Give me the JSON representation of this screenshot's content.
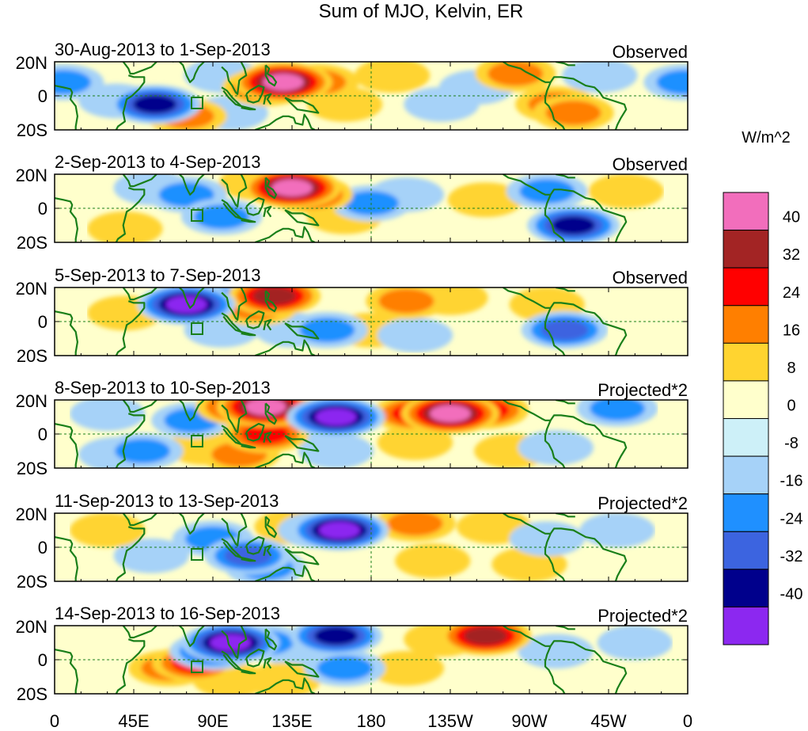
{
  "figure": {
    "title": "Sum of MJO, Kelvin, ER",
    "units": "W/m^2"
  },
  "map_data": {
    "type": "lat-lon contour panels",
    "lat_ticks": [
      "20N",
      "0",
      "20S"
    ],
    "lon_ticks": [
      "0",
      "45E",
      "90E",
      "135E",
      "180",
      "135W",
      "90W",
      "45W",
      "0"
    ],
    "panels": [
      {
        "dates": "30-Aug-2013 to 1-Sep-2013",
        "label": "Observed",
        "blobs": [
          {
            "lon": 130,
            "lat": 8,
            "v": 40
          },
          {
            "lon": 120,
            "lat": 5,
            "v": 24
          },
          {
            "lon": 150,
            "lat": 8,
            "v": 16
          },
          {
            "lon": 57,
            "lat": -5,
            "v": -32
          },
          {
            "lon": 35,
            "lat": -3,
            "v": -8
          },
          {
            "lon": 5,
            "lat": 8,
            "v": -16
          },
          {
            "lon": 358,
            "lat": 8,
            "v": -16
          },
          {
            "lon": 285,
            "lat": -5,
            "v": 16
          },
          {
            "lon": 295,
            "lat": -10,
            "v": 16
          },
          {
            "lon": 262,
            "lat": 13,
            "v": 16
          },
          {
            "lon": 192,
            "lat": 12,
            "v": 8
          },
          {
            "lon": 165,
            "lat": -5,
            "v": 8
          },
          {
            "lon": 220,
            "lat": -5,
            "v": -8
          },
          {
            "lon": 310,
            "lat": 12,
            "v": -8
          },
          {
            "lon": 100,
            "lat": -10,
            "v": -8
          },
          {
            "lon": 240,
            "lat": 5,
            "v": -8
          },
          {
            "lon": 95,
            "lat": 12,
            "v": -8
          },
          {
            "lon": 75,
            "lat": -12,
            "v": 16
          }
        ]
      },
      {
        "dates": "2-Sep-2013 to 4-Sep-2013",
        "label": "Observed",
        "blobs": [
          {
            "lon": 135,
            "lat": 12,
            "v": 40
          },
          {
            "lon": 145,
            "lat": 8,
            "v": 24
          },
          {
            "lon": 75,
            "lat": 8,
            "v": -16
          },
          {
            "lon": 55,
            "lat": 12,
            "v": -8
          },
          {
            "lon": 95,
            "lat": -5,
            "v": -16
          },
          {
            "lon": 180,
            "lat": 3,
            "v": -16
          },
          {
            "lon": 200,
            "lat": 8,
            "v": -8
          },
          {
            "lon": 295,
            "lat": -10,
            "v": -32
          },
          {
            "lon": 280,
            "lat": 10,
            "v": -16
          },
          {
            "lon": 165,
            "lat": -5,
            "v": 8
          },
          {
            "lon": 245,
            "lat": 5,
            "v": 8
          },
          {
            "lon": 115,
            "lat": 15,
            "v": 8
          },
          {
            "lon": 325,
            "lat": 10,
            "v": 8
          },
          {
            "lon": 40,
            "lat": -12,
            "v": 8
          }
        ]
      },
      {
        "dates": "5-Sep-2013 to 7-Sep-2013",
        "label": "Observed",
        "blobs": [
          {
            "lon": 75,
            "lat": 10,
            "v": -40
          },
          {
            "lon": 95,
            "lat": 12,
            "v": -16
          },
          {
            "lon": 125,
            "lat": 15,
            "v": 32
          },
          {
            "lon": 115,
            "lat": 8,
            "v": 16
          },
          {
            "lon": 200,
            "lat": 12,
            "v": 16
          },
          {
            "lon": 225,
            "lat": 14,
            "v": 8
          },
          {
            "lon": 290,
            "lat": -5,
            "v": -24
          },
          {
            "lon": 155,
            "lat": -5,
            "v": -16
          },
          {
            "lon": 135,
            "lat": -5,
            "v": -8
          },
          {
            "lon": 95,
            "lat": -5,
            "v": -8
          },
          {
            "lon": 180,
            "lat": -5,
            "v": 8
          },
          {
            "lon": 280,
            "lat": 10,
            "v": 8
          },
          {
            "lon": 40,
            "lat": 5,
            "v": 8
          },
          {
            "lon": 205,
            "lat": -8,
            "v": -8
          }
        ]
      },
      {
        "dates": "8-Sep-2013 to 10-Sep-2013",
        "label": "Projected*2",
        "blobs": [
          {
            "lon": 120,
            "lat": 16,
            "v": 40
          },
          {
            "lon": 105,
            "lat": 16,
            "v": 24
          },
          {
            "lon": 160,
            "lat": 10,
            "v": -40
          },
          {
            "lon": 145,
            "lat": 8,
            "v": -16
          },
          {
            "lon": 78,
            "lat": 8,
            "v": -16
          },
          {
            "lon": 225,
            "lat": 12,
            "v": 40
          },
          {
            "lon": 205,
            "lat": 12,
            "v": 24
          },
          {
            "lon": 245,
            "lat": 14,
            "v": 24
          },
          {
            "lon": 120,
            "lat": 0,
            "v": 24
          },
          {
            "lon": 105,
            "lat": -12,
            "v": 16
          },
          {
            "lon": 85,
            "lat": -8,
            "v": 8
          },
          {
            "lon": 50,
            "lat": -10,
            "v": -16
          },
          {
            "lon": 35,
            "lat": -12,
            "v": -8
          },
          {
            "lon": 205,
            "lat": -5,
            "v": 8
          },
          {
            "lon": 260,
            "lat": -10,
            "v": 8
          },
          {
            "lon": 285,
            "lat": -8,
            "v": -8
          },
          {
            "lon": 320,
            "lat": 15,
            "v": -16
          },
          {
            "lon": 160,
            "lat": -10,
            "v": -8
          },
          {
            "lon": 30,
            "lat": 12,
            "v": -8
          }
        ]
      },
      {
        "dates": "11-Sep-2013 to 13-Sep-2013",
        "label": "Projected*2",
        "blobs": [
          {
            "lon": 162,
            "lat": 10,
            "v": -40
          },
          {
            "lon": 150,
            "lat": 10,
            "v": -16
          },
          {
            "lon": 110,
            "lat": -5,
            "v": -24
          },
          {
            "lon": 90,
            "lat": 5,
            "v": -16
          },
          {
            "lon": 120,
            "lat": -12,
            "v": -16
          },
          {
            "lon": 135,
            "lat": 12,
            "v": 8
          },
          {
            "lon": 205,
            "lat": 14,
            "v": 16
          },
          {
            "lon": 250,
            "lat": 12,
            "v": 8
          },
          {
            "lon": 55,
            "lat": -5,
            "v": -8
          },
          {
            "lon": 215,
            "lat": -8,
            "v": 8
          },
          {
            "lon": 270,
            "lat": -10,
            "v": 8
          },
          {
            "lon": 280,
            "lat": 5,
            "v": -8
          },
          {
            "lon": 320,
            "lat": 10,
            "v": -8
          },
          {
            "lon": 30,
            "lat": 10,
            "v": 8
          }
        ]
      },
      {
        "dates": "14-Sep-2013 to 16-Sep-2013",
        "label": "Projected*2",
        "blobs": [
          {
            "lon": 80,
            "lat": -2,
            "v": 24
          },
          {
            "lon": 65,
            "lat": -5,
            "v": 16
          },
          {
            "lon": 100,
            "lat": 10,
            "v": -40
          },
          {
            "lon": 90,
            "lat": 5,
            "v": -24
          },
          {
            "lon": 120,
            "lat": 10,
            "v": -16
          },
          {
            "lon": 160,
            "lat": 14,
            "v": -32
          },
          {
            "lon": 145,
            "lat": 0,
            "v": -8
          },
          {
            "lon": 165,
            "lat": -5,
            "v": -16
          },
          {
            "lon": 245,
            "lat": 14,
            "v": 32
          },
          {
            "lon": 220,
            "lat": 12,
            "v": 8
          },
          {
            "lon": 100,
            "lat": -12,
            "v": 8
          },
          {
            "lon": 130,
            "lat": -12,
            "v": 8
          },
          {
            "lon": 285,
            "lat": 5,
            "v": -8
          },
          {
            "lon": 330,
            "lat": 10,
            "v": -8
          },
          {
            "lon": 200,
            "lat": -5,
            "v": 8
          }
        ]
      }
    ]
  },
  "colorbar": {
    "tick_labels": [
      "40",
      "32",
      "24",
      "16",
      "8",
      "0",
      "-8",
      "-16",
      "-24",
      "-32",
      "-40"
    ],
    "colors": [
      "#f26ebc",
      "#a32424",
      "#ff0000",
      "#ff7f00",
      "#ffd430",
      "#ffffcc",
      "#cdf0f8",
      "#a6d2f8",
      "#1f90ff",
      "#3c64e0",
      "#00008c",
      "#8c28f0"
    ]
  }
}
